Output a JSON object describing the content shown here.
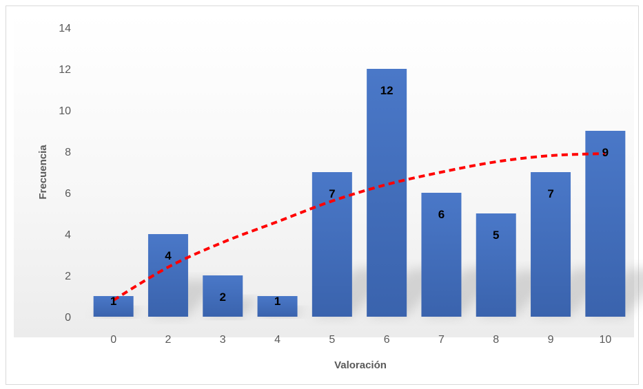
{
  "chart_data": {
    "type": "bar",
    "title": "",
    "xlabel": "Valoración",
    "ylabel": "Frecuencia",
    "categories": [
      "0",
      "2",
      "3",
      "4",
      "5",
      "6",
      "7",
      "8",
      "9",
      "10"
    ],
    "series": [
      {
        "values": [
          1,
          4,
          2,
          1,
          7,
          12,
          6,
          5,
          7,
          9
        ],
        "color": "#4472c4",
        "data_labels": [
          "1",
          "4",
          "2",
          "1",
          "7",
          "12",
          "6",
          "5",
          "7",
          "9"
        ]
      }
    ],
    "trendline": {
      "type": "polynomial",
      "color": "#ff0000",
      "style": "dashed",
      "values": [
        0.8,
        2.4,
        3.6,
        4.6,
        5.6,
        6.4,
        7.0,
        7.5,
        7.8,
        7.9
      ]
    },
    "ylim": [
      0,
      14
    ],
    "yticks": [
      "0",
      "2",
      "4",
      "6",
      "8",
      "10",
      "12",
      "14"
    ],
    "grid": false,
    "legend": "none"
  }
}
